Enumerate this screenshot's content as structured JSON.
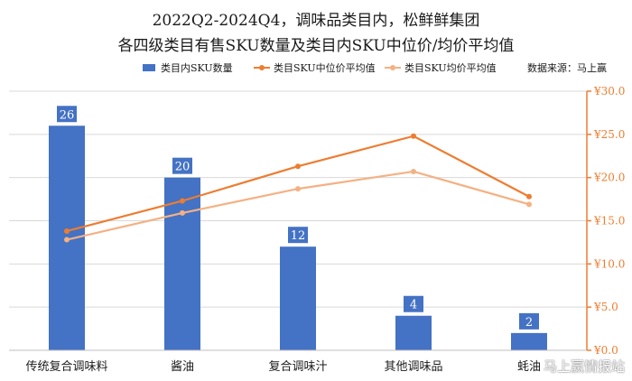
{
  "title": {
    "line1": "2022Q2-2024Q4，调味品类目内，松鲜鲜集团",
    "line2": "各四级类目有售SKU数量及类目内SKU中位价/均价平均值"
  },
  "source": "数据来源：马上赢",
  "watermark": "马上赢情报站",
  "colors": {
    "bar": "#4472c4",
    "median_line": "#ed7d31",
    "avg_line": "#f4b183",
    "right_axis": "#ed7d31",
    "grid": "#d9d9d9"
  },
  "chart_data": {
    "type": "bar",
    "categories": [
      "传统复合调味料",
      "酱油",
      "复合调味汁",
      "其他调味品",
      "蚝油"
    ],
    "series": [
      {
        "name": "类目内SKU数量",
        "type": "bar",
        "axis": "left",
        "values": [
          26,
          20,
          12,
          4,
          2
        ]
      },
      {
        "name": "类目SKU中位价平均值",
        "type": "line",
        "axis": "right",
        "values": [
          13.8,
          17.3,
          21.3,
          24.8,
          17.8
        ]
      },
      {
        "name": "类目SKU均价平均值",
        "type": "line",
        "axis": "right",
        "values": [
          12.8,
          15.9,
          18.7,
          20.7,
          16.9
        ]
      }
    ],
    "left_axis": {
      "range": [
        0,
        30
      ],
      "ticks": []
    },
    "right_axis": {
      "range": [
        0,
        30
      ],
      "ticks": [
        "¥0.0",
        "¥5.0",
        "¥10.0",
        "¥15.0",
        "¥20.0",
        "¥25.0",
        "¥30.0"
      ]
    },
    "bar_labels": [
      "26",
      "20",
      "12",
      "4",
      "2"
    ],
    "grid": true,
    "legend": "top"
  }
}
